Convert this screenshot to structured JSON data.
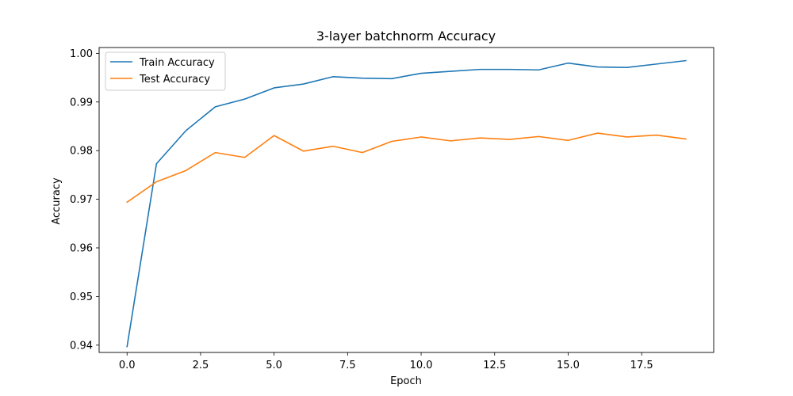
{
  "chart_data": {
    "type": "line",
    "title": "3-layer batchnorm Accuracy",
    "xlabel": "Epoch",
    "ylabel": "Accuracy",
    "xlim": [
      -0.95,
      19.95
    ],
    "ylim": [
      0.9385,
      1.0012
    ],
    "xticks": [
      {
        "value": 0,
        "label": "0.0"
      },
      {
        "value": 2.5,
        "label": "2.5"
      },
      {
        "value": 5,
        "label": "5.0"
      },
      {
        "value": 7.5,
        "label": "7.5"
      },
      {
        "value": 10,
        "label": "10.0"
      },
      {
        "value": 12.5,
        "label": "12.5"
      },
      {
        "value": 15,
        "label": "15.0"
      },
      {
        "value": 17.5,
        "label": "17.5"
      }
    ],
    "yticks": [
      {
        "value": 0.94,
        "label": "0.94"
      },
      {
        "value": 0.95,
        "label": "0.95"
      },
      {
        "value": 0.96,
        "label": "0.96"
      },
      {
        "value": 0.97,
        "label": "0.97"
      },
      {
        "value": 0.98,
        "label": "0.98"
      },
      {
        "value": 0.99,
        "label": "0.99"
      },
      {
        "value": 1.0,
        "label": "1.00"
      }
    ],
    "grid": false,
    "legend_position": "top-left",
    "x": [
      0,
      1,
      2,
      3,
      4,
      5,
      6,
      7,
      8,
      9,
      10,
      11,
      12,
      13,
      14,
      15,
      16,
      17,
      18,
      19
    ],
    "series": [
      {
        "name": "Train Accuracy",
        "color": "#1f77b4",
        "values": [
          0.9397,
          0.9773,
          0.9841,
          0.989,
          0.9906,
          0.9929,
          0.9937,
          0.9952,
          0.9949,
          0.9948,
          0.9959,
          0.9963,
          0.9967,
          0.9967,
          0.9966,
          0.998,
          0.9972,
          0.9971,
          0.9978,
          0.9985
        ]
      },
      {
        "name": "Test Accuracy",
        "color": "#ff7f0e",
        "values": [
          0.9694,
          0.9736,
          0.9759,
          0.9796,
          0.9786,
          0.9831,
          0.9799,
          0.9809,
          0.9796,
          0.9819,
          0.9828,
          0.982,
          0.9826,
          0.9823,
          0.9829,
          0.9821,
          0.9836,
          0.9828,
          0.9832,
          0.9824
        ]
      }
    ]
  }
}
